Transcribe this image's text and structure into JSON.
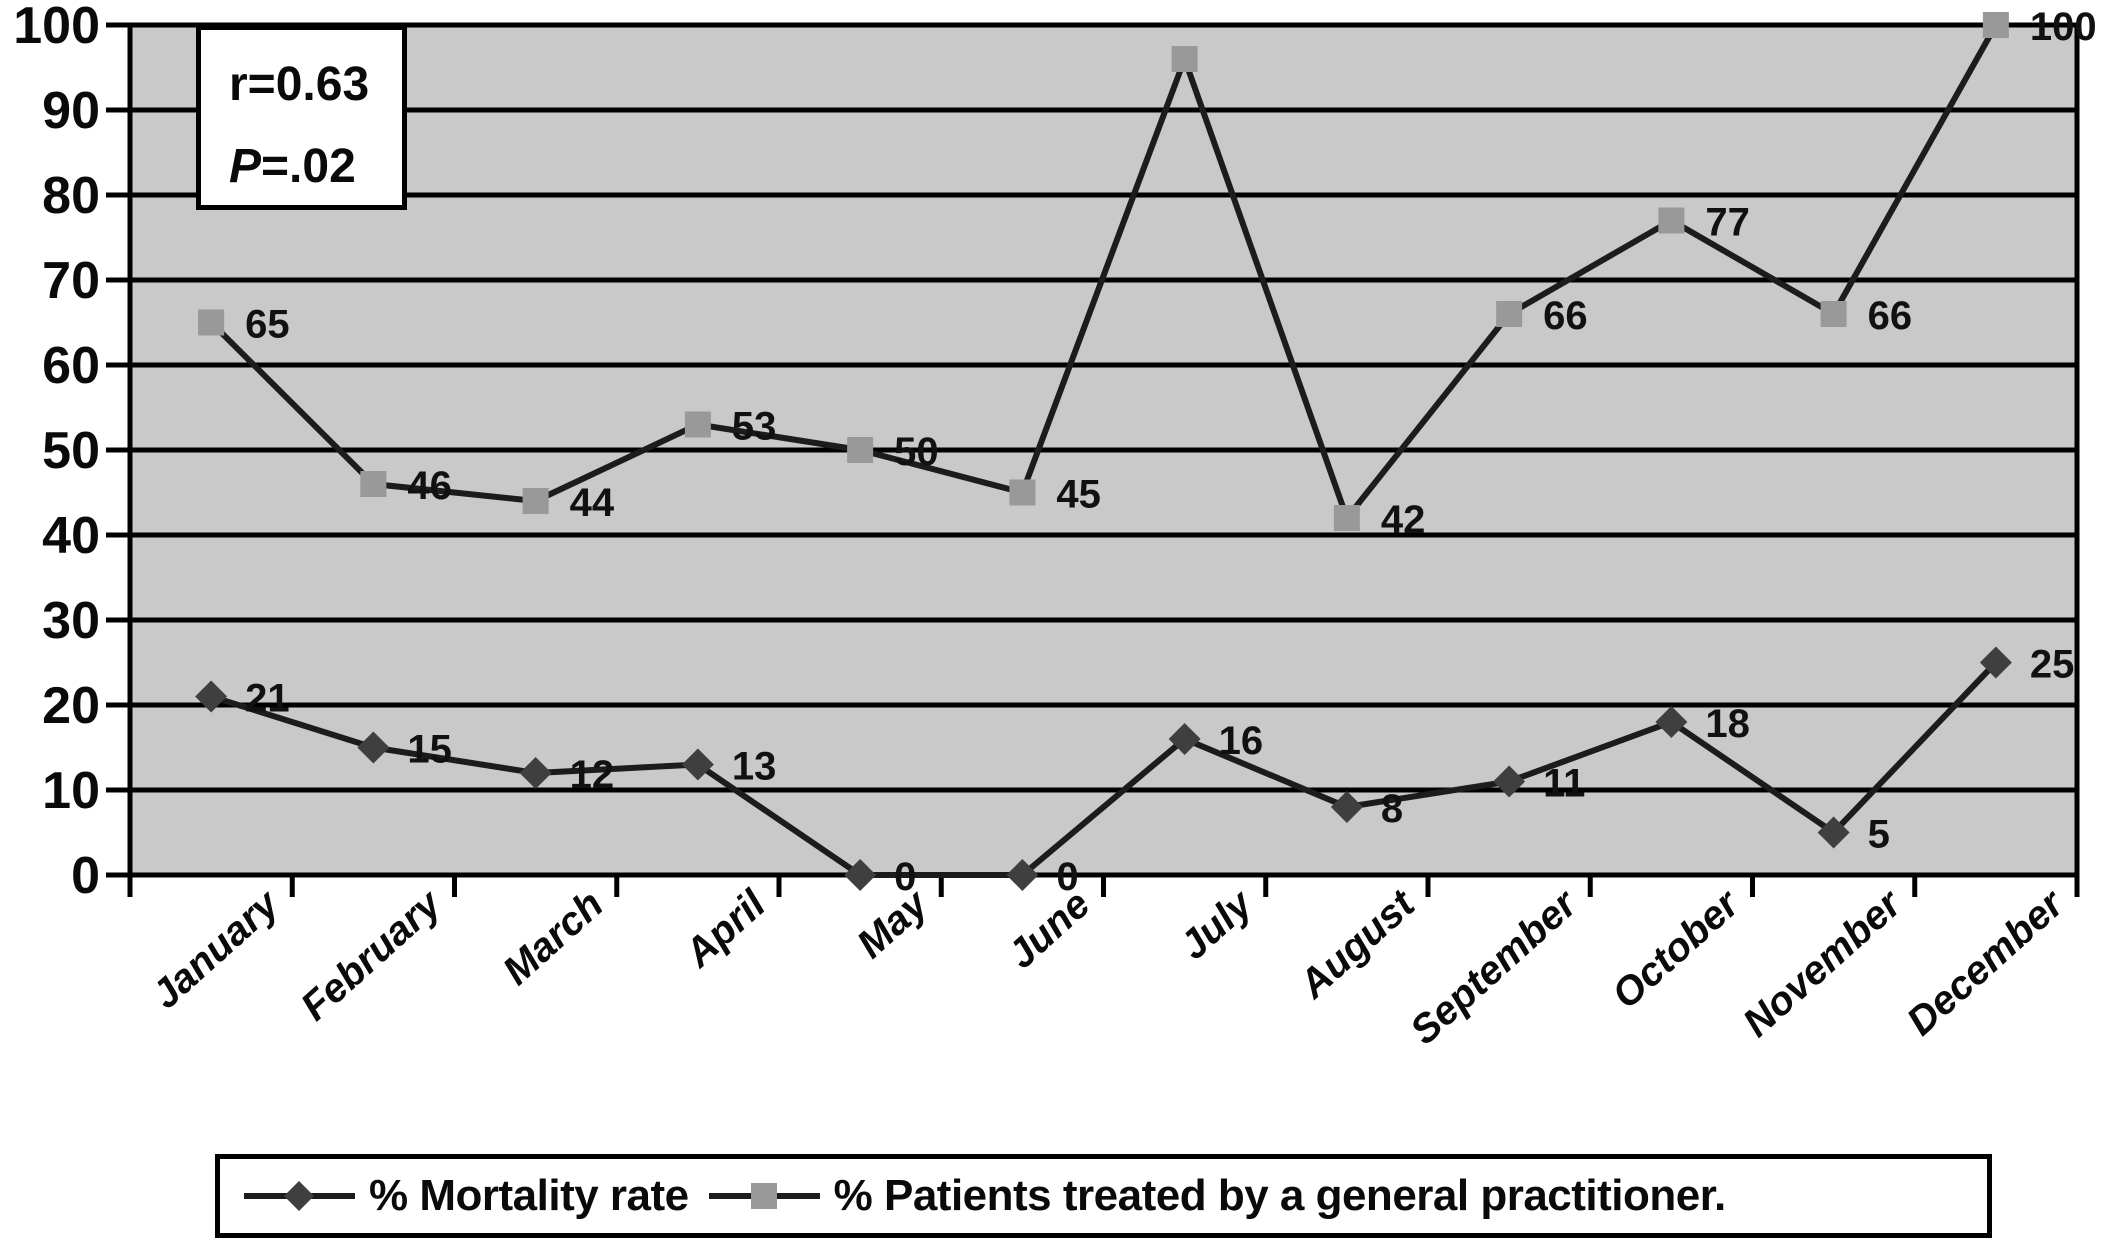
{
  "chart_data": {
    "type": "line",
    "title": "",
    "categories": [
      "January",
      "February",
      "March",
      "April",
      "May",
      "June",
      "July",
      "August",
      "September",
      "October",
      "November",
      "December"
    ],
    "series": [
      {
        "name": "% Mortality rate",
        "marker": "diamond",
        "marker_color": "#3f3f3f",
        "values": [
          21,
          15,
          12,
          13,
          0,
          0,
          16,
          8,
          11,
          18,
          5,
          25
        ],
        "point_labels": [
          "21",
          "15",
          "12",
          "13",
          "0",
          "0",
          "16",
          "8",
          "11",
          "18",
          "5",
          "25"
        ]
      },
      {
        "name": "% Patients treated by a general practitioner.",
        "marker": "square",
        "marker_color": "#999999",
        "values": [
          65,
          46,
          44,
          53,
          50,
          45,
          96,
          42,
          66,
          77,
          66,
          100
        ],
        "point_labels": [
          "65",
          "46",
          "44",
          "53",
          "50",
          "45",
          null,
          "42",
          "66",
          "77",
          "66",
          "100"
        ]
      }
    ],
    "ylim": [
      0,
      100
    ],
    "y_ticks": [
      "0",
      "10",
      "20",
      "30",
      "40",
      "50",
      "60",
      "70",
      "80",
      "90",
      "100"
    ],
    "grid": "horizontal",
    "legend_position": "bottom",
    "plot_background": "#c9c9c9",
    "line_color": "#1c1c1c",
    "annotation_text": [
      "r=0.63",
      "P=.02"
    ]
  },
  "annotation": {
    "r": "r=0.63",
    "p_var": "P",
    "p_rest": "=.02"
  },
  "legend": {
    "items": [
      {
        "label": "% Mortality rate",
        "marker": "diamond"
      },
      {
        "label": "% Patients treated by a general practitioner.",
        "marker": "square"
      }
    ]
  }
}
